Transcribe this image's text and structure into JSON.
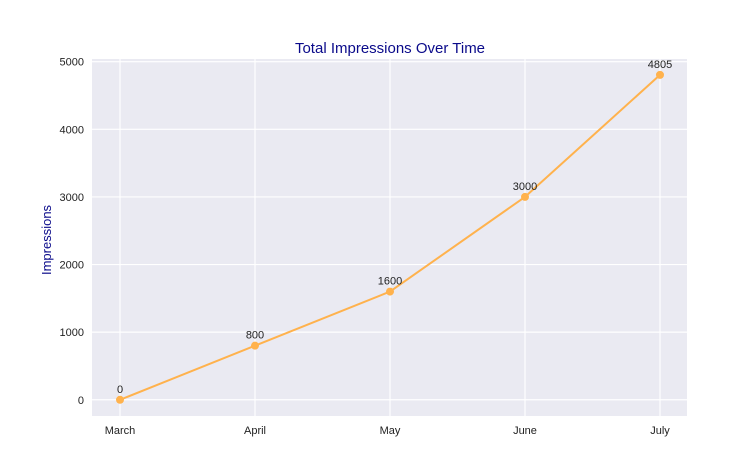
{
  "chart_data": {
    "type": "line",
    "title": "Total Impressions Over Time",
    "xlabel": "",
    "ylabel": "Impressions",
    "categories": [
      "March",
      "April",
      "May",
      "June",
      "July"
    ],
    "series": [
      {
        "values": [
          0,
          800,
          1600,
          3000,
          4805
        ]
      }
    ],
    "data_labels": [
      "0",
      "800",
      "1600",
      "3000",
      "4805"
    ],
    "yticks": [
      0,
      1000,
      2000,
      3000,
      4000,
      5000
    ],
    "ylim": [
      -240,
      5040
    ],
    "grid": true,
    "legend": "none",
    "colors": {
      "line": "#ffb24d",
      "plot_background": "#eaeaf2",
      "grid": "#ffffff",
      "title": "#0a0a8a"
    }
  }
}
